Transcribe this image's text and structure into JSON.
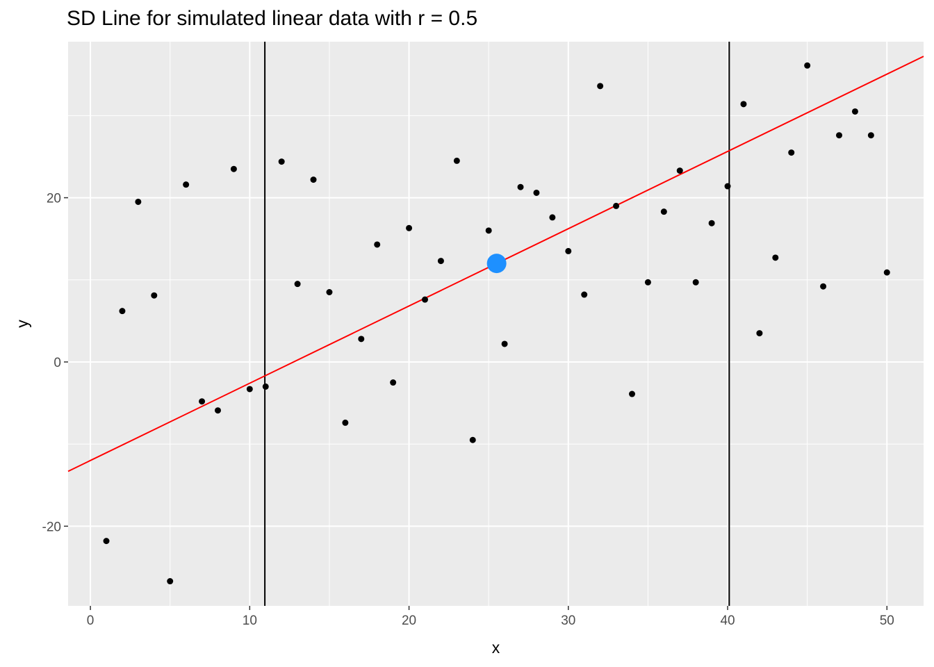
{
  "chart_data": {
    "type": "scatter",
    "title": "SD Line for simulated linear data with r = 0.5",
    "xlabel": "x",
    "ylabel": "y",
    "xlim": [
      -1.4,
      52.3
    ],
    "ylim": [
      -29.7,
      39
    ],
    "x_ticks": [
      0,
      10,
      20,
      30,
      40,
      50
    ],
    "y_ticks": [
      -20,
      0,
      20
    ],
    "x_tick_labels": [
      "0",
      "10",
      "20",
      "30",
      "40",
      "50"
    ],
    "y_tick_labels": [
      "-20",
      "0",
      "20"
    ],
    "grid": true,
    "panel_background": "#EBEBEB",
    "grid_color": "#FFFFFF",
    "series": [
      {
        "type": "scatter",
        "color": "#000000",
        "points": [
          [
            1,
            -21.8
          ],
          [
            2,
            6.2
          ],
          [
            3,
            19.5
          ],
          [
            4,
            8.1
          ],
          [
            5,
            -26.7
          ],
          [
            6,
            21.6
          ],
          [
            7,
            -4.8
          ],
          [
            8,
            -5.9
          ],
          [
            9,
            23.5
          ],
          [
            10,
            -3.3
          ],
          [
            11,
            -3.0
          ],
          [
            12,
            24.4
          ],
          [
            13,
            9.5
          ],
          [
            14,
            22.2
          ],
          [
            15,
            8.5
          ],
          [
            16,
            -7.4
          ],
          [
            17,
            2.8
          ],
          [
            18,
            14.3
          ],
          [
            19,
            -2.5
          ],
          [
            20,
            16.3
          ],
          [
            21,
            7.6
          ],
          [
            22,
            12.3
          ],
          [
            23,
            24.5
          ],
          [
            24,
            -9.5
          ],
          [
            25,
            16.0
          ],
          [
            26,
            2.2
          ],
          [
            27,
            21.3
          ],
          [
            28,
            20.6
          ],
          [
            29,
            17.6
          ],
          [
            30,
            13.5
          ],
          [
            31,
            8.2
          ],
          [
            32,
            33.6
          ],
          [
            33,
            19.0
          ],
          [
            34,
            -3.9
          ],
          [
            35,
            9.7
          ],
          [
            36,
            18.3
          ],
          [
            37,
            23.3
          ],
          [
            38,
            9.7
          ],
          [
            39,
            16.9
          ],
          [
            40,
            21.4
          ],
          [
            41,
            31.4
          ],
          [
            42,
            3.5
          ],
          [
            43,
            12.7
          ],
          [
            44,
            25.5
          ],
          [
            45,
            36.1
          ],
          [
            46,
            9.2
          ],
          [
            47,
            27.6
          ],
          [
            48,
            30.5
          ],
          [
            49,
            27.6
          ],
          [
            50,
            10.9
          ]
        ]
      },
      {
        "type": "point",
        "name": "center",
        "color": "#1E90FF",
        "points": [
          [
            25.5,
            12.0
          ]
        ]
      },
      {
        "type": "line",
        "name": "SD line",
        "color": "#FF0000",
        "intercept": -12.0,
        "slope": 0.941
      }
    ],
    "vlines": [
      {
        "x": 10.95,
        "color": "#000000"
      },
      {
        "x": 40.1,
        "color": "#000000"
      }
    ]
  }
}
